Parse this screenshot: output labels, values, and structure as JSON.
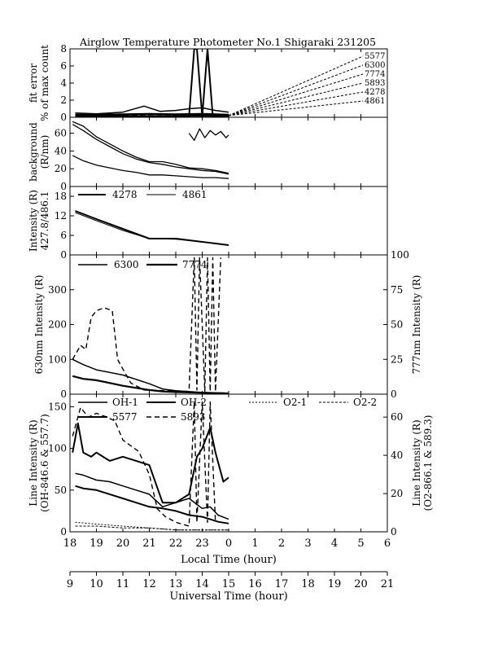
{
  "title": "Airglow Temperature Photometer No.1  Shigaraki  231205",
  "x_axis_local": {
    "label": "Local Time (hour)",
    "ticks": [
      "18",
      "19",
      "20",
      "21",
      "22",
      "23",
      "0",
      "1",
      "2",
      "3",
      "4",
      "5",
      "6"
    ]
  },
  "x_axis_ut": {
    "label": "Universal Time (hour)",
    "ticks": [
      "9",
      "10",
      "11",
      "12",
      "13",
      "14",
      "15",
      "16",
      "17",
      "18",
      "19",
      "20",
      "21"
    ]
  },
  "chart_data": [
    {
      "type": "line",
      "panel": "fit_error",
      "ylabel": "fit error\n% of max count",
      "yticks": [
        "0",
        "2",
        "4",
        "6",
        "8"
      ],
      "ylim": [
        0,
        8
      ],
      "x_unit": "universal time (hour)",
      "xlim": [
        9,
        21
      ],
      "legend": [
        "5577",
        "6300",
        "7774",
        "5893",
        "4278",
        "4861"
      ],
      "series": [
        {
          "name": "5577",
          "x": [
            9.2,
            10,
            11,
            11.8,
            12.4,
            13,
            13.5,
            13.7,
            13.8,
            14,
            14.2,
            14.4,
            14.8,
            15
          ],
          "y": [
            0.1,
            0.1,
            0.15,
            0.1,
            0.1,
            0.1,
            0.1,
            8,
            8,
            0.1,
            8,
            0.1,
            0.1,
            0.1
          ]
        },
        {
          "name": "6300",
          "x": [
            9.2,
            10,
            11,
            11.8,
            12.4,
            13,
            13.5,
            14,
            14.5,
            15
          ],
          "y": [
            0.5,
            0.4,
            0.6,
            1.3,
            0.7,
            0.8,
            1.0,
            1.1,
            0.8,
            0.6
          ]
        },
        {
          "name": "7774",
          "x": [
            9.2,
            10,
            11,
            12,
            13,
            14,
            15
          ],
          "y": [
            0.3,
            0.3,
            0.35,
            0.4,
            0.35,
            0.4,
            0.3
          ]
        },
        {
          "name": "5893",
          "x": [
            9.2,
            10,
            11,
            12,
            13,
            14,
            15
          ],
          "y": [
            0.2,
            0.2,
            0.25,
            0.2,
            0.2,
            0.3,
            0.2
          ]
        },
        {
          "name": "4278",
          "x": [
            9.2,
            10,
            11,
            12,
            13,
            14,
            15
          ],
          "y": [
            0.15,
            0.15,
            0.15,
            0.15,
            0.15,
            0.2,
            0.15
          ]
        },
        {
          "name": "4861",
          "x": [
            9.2,
            10,
            11,
            12,
            13,
            14,
            15
          ],
          "y": [
            0.1,
            0.1,
            0.1,
            0.1,
            0.1,
            0.1,
            0.1
          ]
        }
      ]
    },
    {
      "type": "line",
      "panel": "background",
      "ylabel": "background\n(R/nm)",
      "yticks": [
        "0",
        "20",
        "40",
        "60"
      ],
      "ylim": [
        0,
        78
      ],
      "x_unit": "universal time (hour)",
      "xlim": [
        9,
        21
      ],
      "series": [
        {
          "x": [
            9.1,
            9.5,
            10,
            10.5,
            11,
            11.5,
            12,
            12.5,
            13,
            13.5,
            14,
            14.5,
            15
          ],
          "y": [
            73,
            68,
            56,
            48,
            40,
            33,
            28,
            28,
            25,
            21,
            20,
            18,
            15
          ]
        },
        {
          "x": [
            9.1,
            9.5,
            10,
            10.5,
            11,
            11.5,
            12,
            12.5,
            13,
            13.5,
            14,
            14.5,
            15
          ],
          "y": [
            70,
            63,
            53,
            45,
            37,
            31,
            27,
            25,
            22,
            20,
            18,
            17,
            14
          ]
        },
        {
          "x": [
            9.1,
            9.5,
            10,
            10.5,
            11,
            11.5,
            12,
            12.5,
            13,
            13.5,
            14,
            14.5,
            15
          ],
          "y": [
            35,
            29,
            24,
            21,
            18,
            16,
            13,
            13,
            12,
            11,
            10,
            10,
            9
          ]
        },
        {
          "x": [
            13.5,
            13.7,
            13.9,
            14.1,
            14.3,
            14.5,
            14.7,
            14.9,
            15
          ],
          "y": [
            60,
            52,
            65,
            55,
            63,
            58,
            62,
            55,
            58
          ]
        }
      ]
    },
    {
      "type": "line",
      "panel": "intensity_4278_4861",
      "ylabel": "Intensity (R)\n427.8/486.1",
      "yticks": [
        "0",
        "6",
        "12",
        "18"
      ],
      "ylim": [
        0,
        21
      ],
      "x_unit": "universal time (hour)",
      "xlim": [
        9,
        21
      ],
      "series": [
        {
          "name": "4278",
          "x": [
            9.2,
            10,
            11,
            12,
            13,
            14,
            15
          ],
          "y": [
            13.5,
            11,
            8,
            5,
            5,
            4,
            3
          ]
        },
        {
          "name": "4861",
          "x": [
            9.2,
            10,
            11,
            12,
            13,
            14,
            15
          ],
          "y": [
            13,
            10.5,
            7.5,
            5,
            4.8,
            4,
            3
          ]
        }
      ]
    },
    {
      "type": "line",
      "panel": "intensity_6300_7774",
      "ylabel": "630nm Intensity (R)",
      "ylabel_right": "777nm Intensity (R)",
      "yticks": [
        "0",
        "100",
        "200",
        "300"
      ],
      "yticks_right": [
        "0",
        "25",
        "50",
        "75",
        "100"
      ],
      "ylim": [
        0,
        400
      ],
      "ylim_right": [
        0,
        100
      ],
      "x_unit": "universal time (hour)",
      "xlim": [
        9,
        21
      ],
      "series": [
        {
          "name": "6300",
          "x": [
            9.1,
            9.5,
            10,
            11,
            12,
            12.5,
            13,
            14,
            15
          ],
          "y": [
            100,
            85,
            70,
            55,
            30,
            15,
            10,
            5,
            3
          ]
        },
        {
          "name": "7774",
          "x": [
            9.1,
            9.5,
            10,
            11,
            12,
            12.5,
            13,
            14,
            15
          ],
          "y": [
            13,
            11,
            10,
            6,
            3,
            2,
            1.5,
            1,
            0.5
          ]
        },
        {
          "name": "5893",
          "x": [
            9.1,
            9.4,
            9.6,
            9.8,
            10,
            10.3,
            10.6,
            10.8,
            11,
            11.3,
            11.8,
            13.5,
            13.7,
            13.8,
            13.9,
            14.1,
            14.2,
            14.3,
            14.4,
            14.5,
            14.7
          ],
          "y": [
            25,
            35,
            32,
            55,
            60,
            62,
            60,
            25,
            18,
            8,
            3,
            2,
            98,
            3,
            98,
            2,
            98,
            2,
            98,
            2,
            98
          ]
        }
      ]
    },
    {
      "type": "line",
      "panel": "line_intensity",
      "ylabel": "Line Intensity (R)\n(OH-846.6 & 557.7)",
      "ylabel_right": "Line Intensity (R)\n(O2-866.1 & 589.3)",
      "yticks": [
        "0",
        "50",
        "100",
        "150"
      ],
      "yticks_right": [
        "0",
        "20",
        "40",
        "60"
      ],
      "ylim": [
        0,
        165
      ],
      "ylim_right": [
        0,
        72
      ],
      "x_unit": "universal time (hour)",
      "xlim": [
        9,
        21
      ],
      "legend": [
        "OH-1",
        "OH-2",
        "O2-1",
        "O2-2",
        "5577",
        "5893"
      ],
      "series": [
        {
          "name": "OH-1",
          "x": [
            9.2,
            9.5,
            10,
            10.5,
            11,
            11.5,
            12,
            12.5,
            13,
            13.5,
            14,
            14.3,
            14.6,
            15
          ],
          "y": [
            70,
            68,
            62,
            60,
            55,
            50,
            45,
            30,
            35,
            40,
            28,
            30,
            20,
            15
          ]
        },
        {
          "name": "OH-2",
          "x": [
            9.2,
            9.5,
            10,
            10.5,
            11,
            11.5,
            12,
            12.5,
            13,
            13.5,
            14,
            14.3,
            14.6,
            15
          ],
          "y": [
            55,
            52,
            50,
            45,
            40,
            35,
            30,
            28,
            25,
            20,
            18,
            15,
            12,
            10
          ]
        },
        {
          "name": "O2-1",
          "x": [
            9.2,
            10,
            11,
            12,
            13,
            14,
            15
          ],
          "y": [
            5,
            4,
            3,
            2,
            1,
            1,
            1
          ]
        },
        {
          "name": "O2-2",
          "x": [
            9.2,
            10,
            11,
            12,
            13,
            14,
            15
          ],
          "y": [
            3,
            3,
            2,
            2,
            1,
            1,
            1
          ]
        },
        {
          "name": "5577",
          "x": [
            9.1,
            9.3,
            9.5,
            9.8,
            10,
            10.5,
            11,
            11.5,
            12,
            12.5,
            13,
            13.5,
            13.8,
            14,
            14.3,
            14.5,
            14.8,
            15
          ],
          "y": [
            95,
            130,
            95,
            90,
            95,
            85,
            90,
            85,
            80,
            35,
            35,
            45,
            90,
            100,
            125,
            95,
            60,
            65
          ]
        },
        {
          "name": "5893",
          "x": [
            9.1,
            9.4,
            9.7,
            10,
            10.4,
            10.7,
            11,
            11.3,
            11.6,
            12,
            12.3,
            12.6,
            13,
            13.5,
            13.7,
            13.8,
            14,
            14.2,
            14.3,
            14.5
          ],
          "y": [
            50,
            65,
            60,
            62,
            60,
            58,
            48,
            45,
            42,
            30,
            12,
            8,
            5,
            3,
            68,
            5,
            68,
            5,
            68,
            5
          ]
        }
      ]
    }
  ]
}
